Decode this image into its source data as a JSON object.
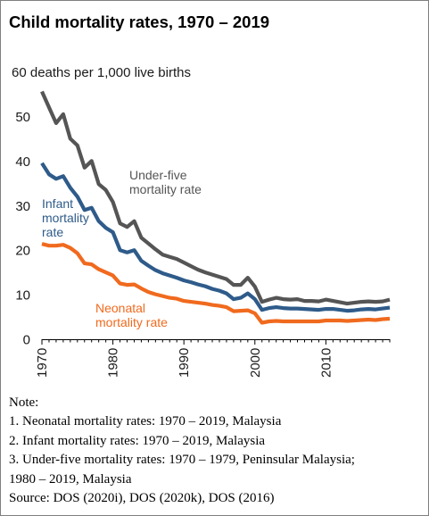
{
  "title": "Child mortality rates, 1970 – 2019",
  "chart_data": {
    "type": "line",
    "title": "Child mortality rates, 1970 – 2019",
    "ylabel": "60 deaths per 1,000 live births",
    "xlabel": "",
    "xlim": [
      1970,
      2019
    ],
    "ylim": [
      0,
      60
    ],
    "yticks": [
      0,
      10,
      20,
      30,
      40,
      50
    ],
    "xtick_labels": [
      "1970",
      "1980",
      "1990",
      "2000",
      "2010"
    ],
    "xticks": [
      1970,
      1980,
      1990,
      2000,
      2010
    ],
    "grid": false,
    "legend": "inline labels",
    "x": [
      1970,
      1971,
      1972,
      1973,
      1974,
      1975,
      1976,
      1977,
      1978,
      1979,
      1980,
      1981,
      1982,
      1983,
      1984,
      1985,
      1986,
      1987,
      1988,
      1989,
      1990,
      1991,
      1992,
      1993,
      1994,
      1995,
      1996,
      1997,
      1998,
      1999,
      2000,
      2001,
      2002,
      2003,
      2004,
      2005,
      2006,
      2007,
      2008,
      2009,
      2010,
      2011,
      2012,
      2013,
      2014,
      2015,
      2016,
      2017,
      2018,
      2019
    ],
    "series": [
      {
        "name": "Under-five mortality rate",
        "label": [
          "Under-five",
          "mortality rate"
        ],
        "color": "#555555",
        "values": [
          55.6,
          52.0,
          48.5,
          50.5,
          45.0,
          43.5,
          38.5,
          40.0,
          34.8,
          33.5,
          30.8,
          26.0,
          25.2,
          26.5,
          22.8,
          21.5,
          20.2,
          19.0,
          18.5,
          18.0,
          17.2,
          16.4,
          15.6,
          15.0,
          14.5,
          14.0,
          13.5,
          12.2,
          12.2,
          13.8,
          11.8,
          8.4,
          8.9,
          9.3,
          9.0,
          8.9,
          9.0,
          8.6,
          8.6,
          8.5,
          8.9,
          8.6,
          8.3,
          8.0,
          8.2,
          8.4,
          8.5,
          8.4,
          8.5,
          8.9
        ]
      },
      {
        "name": "Infant mortality rate",
        "label": [
          "Infant",
          "mortality",
          "rate"
        ],
        "color": "#2e5b8a",
        "values": [
          39.5,
          37.0,
          36.0,
          36.6,
          34.0,
          32.0,
          29.0,
          29.5,
          26.5,
          25.0,
          24.0,
          20.0,
          19.5,
          20.0,
          17.6,
          16.5,
          15.5,
          14.8,
          14.3,
          13.8,
          13.2,
          12.8,
          12.3,
          11.9,
          11.3,
          10.9,
          10.3,
          9.0,
          9.3,
          10.3,
          9.0,
          6.6,
          7.0,
          7.2,
          7.0,
          6.9,
          6.9,
          6.8,
          6.7,
          6.6,
          6.8,
          6.8,
          6.6,
          6.4,
          6.5,
          6.7,
          6.8,
          6.7,
          6.9,
          7.1
        ]
      },
      {
        "name": "Neonatal mortality rate",
        "label": [
          "Neonatal",
          "mortality rate"
        ],
        "color": "#f06a1e",
        "values": [
          21.4,
          21.0,
          21.0,
          21.2,
          20.5,
          19.3,
          17.0,
          16.8,
          15.7,
          15.0,
          14.3,
          12.5,
          12.2,
          12.3,
          11.4,
          10.6,
          10.1,
          9.7,
          9.3,
          9.1,
          8.6,
          8.4,
          8.2,
          8.0,
          7.7,
          7.5,
          7.2,
          6.3,
          6.4,
          6.5,
          5.8,
          3.7,
          4.0,
          4.1,
          4.0,
          4.0,
          4.0,
          4.0,
          4.0,
          4.0,
          4.2,
          4.2,
          4.2,
          4.1,
          4.2,
          4.3,
          4.4,
          4.3,
          4.5,
          4.6
        ]
      }
    ]
  },
  "notes": [
    "Note:",
    "1. Neonatal mortality rates: 1970 – 2019, Malaysia",
    "2. Infant mortality rates: 1970 – 2019, Malaysia",
    "3. Under-five mortality rates: 1970 – 1979, Peninsular Malaysia;",
    "1980 – 2019, Malaysia",
    "Source: DOS (2020i), DOS (2020k), DOS (2016)"
  ]
}
